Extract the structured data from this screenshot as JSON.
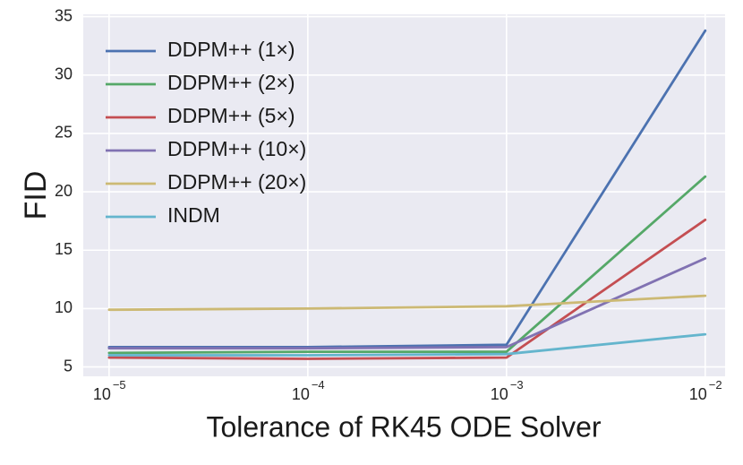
{
  "chart_data": {
    "type": "line",
    "title": "",
    "xlabel": "Tolerance of RK45 ODE Solver",
    "ylabel": "FID",
    "xscale": "log",
    "x": [
      1e-05,
      0.0001,
      0.001,
      0.01
    ],
    "x_tick_bases": [
      "10",
      "10",
      "10",
      "10"
    ],
    "x_tick_exponents": [
      "−5",
      "−4",
      "−3",
      "−2"
    ],
    "y_ticks": [
      5,
      10,
      15,
      20,
      25,
      30,
      35
    ],
    "y_tick_labels": [
      "5",
      "10",
      "15",
      "20",
      "25",
      "30",
      "35"
    ],
    "xlim_exp": [
      -5.13,
      -1.9
    ],
    "ylim": [
      4.2,
      35.2
    ],
    "grid": true,
    "legend_position": "top-left",
    "series": [
      {
        "name": "DDPM++ (1×)",
        "color": "#4c72b0",
        "values": [
          6.7,
          6.7,
          6.9,
          33.8
        ]
      },
      {
        "name": "DDPM++ (2×)",
        "color": "#55a868",
        "values": [
          6.2,
          6.3,
          6.3,
          21.3
        ]
      },
      {
        "name": "DDPM++ (5×)",
        "color": "#c44e52",
        "values": [
          5.8,
          5.7,
          5.8,
          17.6
        ]
      },
      {
        "name": "DDPM++ (10×)",
        "color": "#8172b2",
        "values": [
          6.6,
          6.6,
          6.7,
          14.3
        ]
      },
      {
        "name": "DDPM++ (20×)",
        "color": "#ccb974",
        "values": [
          9.9,
          10.0,
          10.2,
          11.1
        ]
      },
      {
        "name": "INDM",
        "color": "#64b5cd",
        "values": [
          6.0,
          6.0,
          6.1,
          7.8
        ]
      }
    ]
  }
}
